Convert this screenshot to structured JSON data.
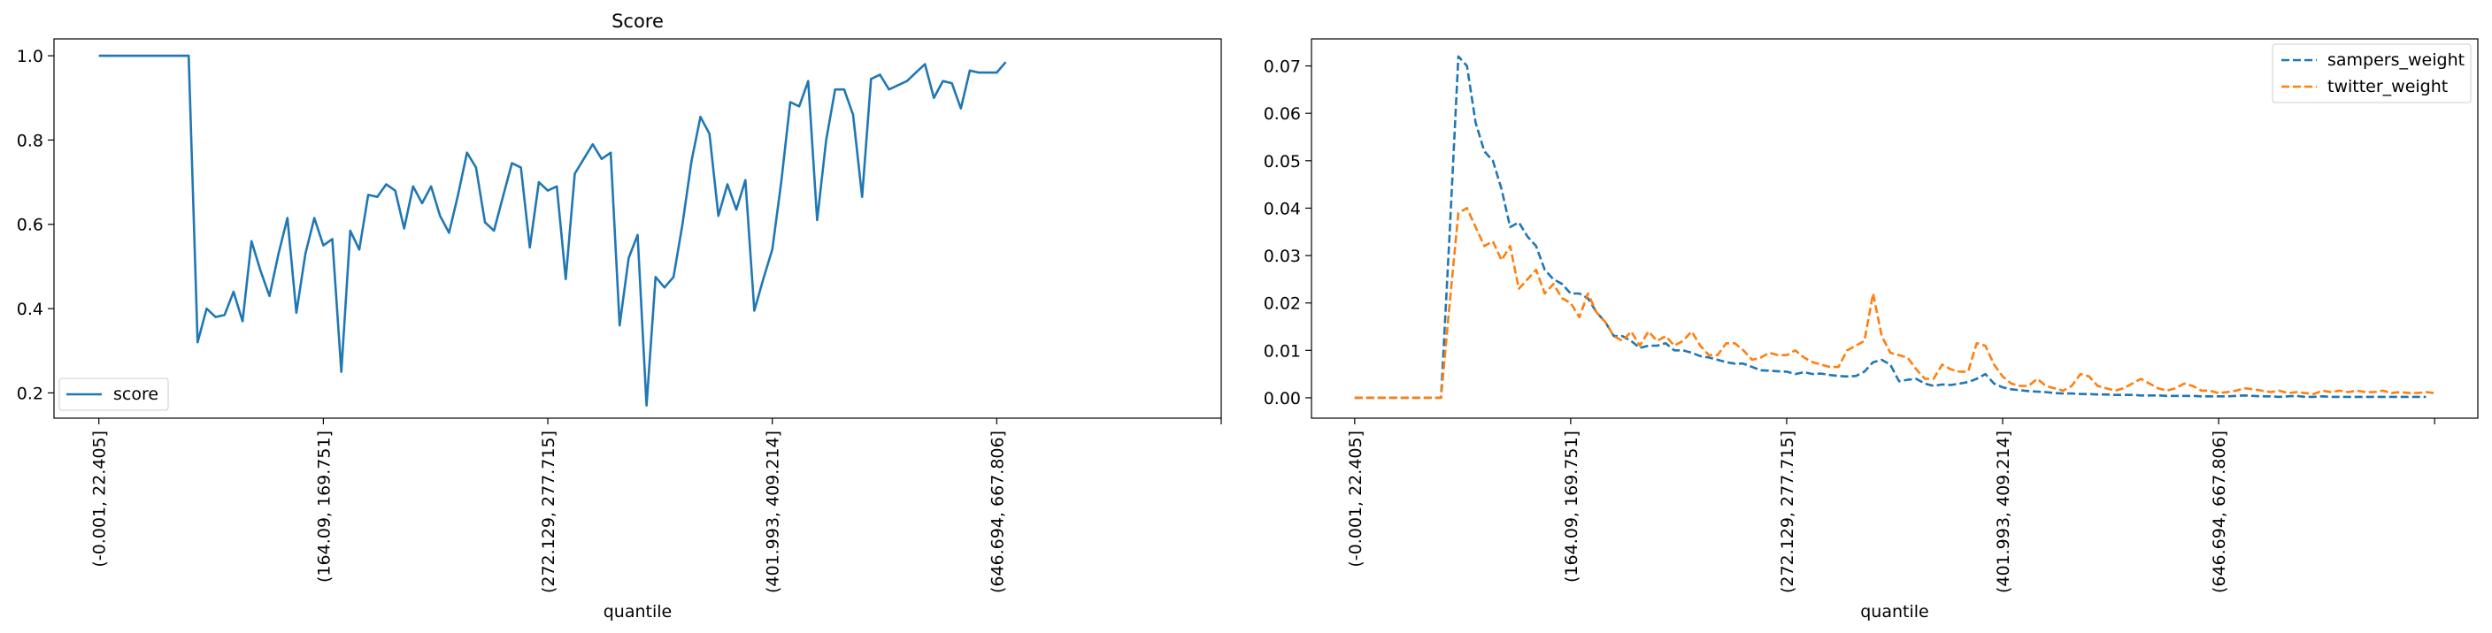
{
  "chart_data": [
    {
      "type": "line",
      "title": "Score",
      "xlabel": "quantile",
      "ylabel": "",
      "xlim": [
        -5,
        125
      ],
      "ylim": [
        0.14,
        1.04
      ],
      "yticks": [
        0.2,
        0.4,
        0.6,
        0.8,
        1.0
      ],
      "ytick_labels": [
        "0.2",
        "0.4",
        "0.6",
        "0.8",
        "1.0"
      ],
      "xticks": [
        0,
        25,
        50,
        75,
        100,
        125
      ],
      "xtick_labels": [
        "(-0.001, 22.405]",
        "(164.09, 169.751]",
        "(272.129, 277.715]",
        "(401.993, 409.214]",
        "(646.694, 667.806]",
        ""
      ],
      "legend": "lower-left",
      "series": [
        {
          "name": "score",
          "color": "#1f77b4",
          "style": "solid",
          "values": [
            1.0,
            1.0,
            1.0,
            1.0,
            1.0,
            1.0,
            1.0,
            1.0,
            1.0,
            1.0,
            1.0,
            0.32,
            0.4,
            0.38,
            0.385,
            0.44,
            0.37,
            0.56,
            0.49,
            0.43,
            0.53,
            0.615,
            0.39,
            0.53,
            0.615,
            0.55,
            0.565,
            0.25,
            0.585,
            0.54,
            0.67,
            0.665,
            0.695,
            0.68,
            0.59,
            0.69,
            0.65,
            0.69,
            0.62,
            0.58,
            0.67,
            0.77,
            0.735,
            0.605,
            0.585,
            0.665,
            0.745,
            0.735,
            0.545,
            0.7,
            0.68,
            0.69,
            0.47,
            0.72,
            0.755,
            0.79,
            0.755,
            0.77,
            0.36,
            0.52,
            0.575,
            0.17,
            0.475,
            0.45,
            0.475,
            0.6,
            0.75,
            0.855,
            0.815,
            0.62,
            0.695,
            0.635,
            0.705,
            0.395,
            0.47,
            0.54,
            0.7,
            0.89,
            0.88,
            0.94,
            0.61,
            0.8,
            0.92,
            0.92,
            0.86,
            0.665,
            0.945,
            0.955,
            0.92,
            0.93,
            0.94,
            0.96,
            0.98,
            0.9,
            0.94,
            0.935,
            0.875,
            0.965,
            0.96,
            0.96,
            0.96,
            0.985
          ]
        }
      ]
    },
    {
      "type": "line",
      "title": "",
      "xlabel": "quantile",
      "ylabel": "",
      "xlim": [
        -5,
        130
      ],
      "ylim": [
        -0.0043,
        0.0757
      ],
      "yticks": [
        0.0,
        0.01,
        0.02,
        0.03,
        0.04,
        0.05,
        0.06,
        0.07
      ],
      "ytick_labels": [
        "0.00",
        "0.01",
        "0.02",
        "0.03",
        "0.04",
        "0.05",
        "0.06",
        "0.07"
      ],
      "xticks": [
        0,
        25,
        50,
        75,
        100,
        125
      ],
      "xtick_labels": [
        "(-0.001, 22.405]",
        "(164.09, 169.751]",
        "(272.129, 277.715]",
        "(401.993, 409.214]",
        "(646.694, 667.806]",
        ""
      ],
      "legend": "upper-right",
      "series": [
        {
          "name": "sampers_weight",
          "color": "#1f77b4",
          "style": "dashed",
          "values": [
            0,
            0,
            0,
            0,
            0,
            0,
            0,
            0,
            0,
            0,
            0,
            0.035,
            0.072,
            0.07,
            0.058,
            0.052,
            0.05,
            0.044,
            0.036,
            0.037,
            0.034,
            0.032,
            0.027,
            0.025,
            0.024,
            0.022,
            0.022,
            0.021,
            0.018,
            0.016,
            0.013,
            0.013,
            0.012,
            0.0105,
            0.011,
            0.011,
            0.0115,
            0.01,
            0.01,
            0.0095,
            0.0088,
            0.0085,
            0.008,
            0.0075,
            0.0072,
            0.0072,
            0.0065,
            0.0058,
            0.0057,
            0.0056,
            0.0055,
            0.005,
            0.0054,
            0.005,
            0.0051,
            0.0048,
            0.0046,
            0.0045,
            0.0046,
            0.0055,
            0.0075,
            0.008,
            0.007,
            0.0035,
            0.0038,
            0.004,
            0.003,
            0.0025,
            0.0028,
            0.0027,
            0.003,
            0.0033,
            0.004,
            0.005,
            0.003,
            0.0022,
            0.0018,
            0.0016,
            0.0014,
            0.0013,
            0.0012,
            0.001,
            0.0009,
            0.0009,
            0.0008,
            0.0008,
            0.0007,
            0.0007,
            0.0006,
            0.0006,
            0.0006,
            0.0005,
            0.0005,
            0.0005,
            0.0004,
            0.0004,
            0.0004,
            0.0004,
            0.0003,
            0.0003,
            0.0003,
            0.0003,
            0.0004,
            0.0005,
            0.0004,
            0.0003,
            0.0003,
            0.0002,
            0.0003,
            0.0004,
            0.0002,
            0.0002,
            0.0003,
            0.0002,
            0.0002,
            0.0002,
            0.0002,
            0.0002,
            0.0002,
            0.0002,
            0.0002,
            0.0002,
            0.0002,
            0.0002,
            0.0002
          ]
        },
        {
          "name": "twitter_weight",
          "color": "#ff7f0e",
          "style": "dashed",
          "values": [
            0,
            0,
            0,
            0,
            0,
            0,
            0,
            0,
            0,
            0,
            0,
            0.02,
            0.039,
            0.04,
            0.036,
            0.032,
            0.033,
            0.029,
            0.032,
            0.023,
            0.025,
            0.027,
            0.022,
            0.024,
            0.021,
            0.02,
            0.017,
            0.022,
            0.018,
            0.016,
            0.013,
            0.012,
            0.014,
            0.011,
            0.014,
            0.012,
            0.013,
            0.011,
            0.012,
            0.014,
            0.011,
            0.009,
            0.009,
            0.0115,
            0.0115,
            0.01,
            0.008,
            0.0085,
            0.0095,
            0.009,
            0.009,
            0.01,
            0.0085,
            0.0075,
            0.007,
            0.0065,
            0.0065,
            0.01,
            0.011,
            0.012,
            0.022,
            0.013,
            0.0095,
            0.009,
            0.0085,
            0.006,
            0.004,
            0.004,
            0.007,
            0.006,
            0.0055,
            0.0055,
            0.0115,
            0.011,
            0.007,
            0.0045,
            0.003,
            0.0025,
            0.0025,
            0.004,
            0.0025,
            0.002,
            0.0015,
            0.0025,
            0.005,
            0.0045,
            0.0025,
            0.002,
            0.0015,
            0.002,
            0.003,
            0.004,
            0.003,
            0.002,
            0.0015,
            0.002,
            0.003,
            0.0025,
            0.0015,
            0.0015,
            0.001,
            0.0012,
            0.0015,
            0.002,
            0.0018,
            0.0015,
            0.0012,
            0.0015,
            0.001,
            0.0012,
            0.001,
            0.0008,
            0.0015,
            0.0012,
            0.0015,
            0.0012,
            0.0015,
            0.0012,
            0.0012,
            0.0015,
            0.001,
            0.0012,
            0.001,
            0.001,
            0.0012,
            0.001
          ]
        }
      ]
    }
  ]
}
